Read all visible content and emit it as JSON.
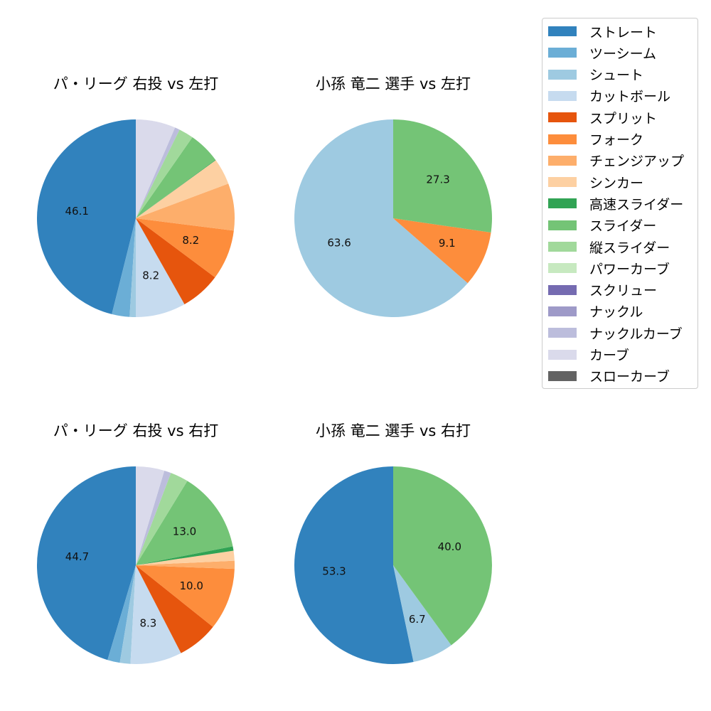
{
  "legend": [
    {
      "label": "ストレート",
      "color": "#3182bd"
    },
    {
      "label": "ツーシーム",
      "color": "#6baed6"
    },
    {
      "label": "シュート",
      "color": "#9ecae1"
    },
    {
      "label": "カットボール",
      "color": "#c6dbef"
    },
    {
      "label": "スプリット",
      "color": "#e6550d"
    },
    {
      "label": "フォーク",
      "color": "#fd8d3c"
    },
    {
      "label": "チェンジアップ",
      "color": "#fdae6b"
    },
    {
      "label": "シンカー",
      "color": "#fdd0a2"
    },
    {
      "label": "高速スライダー",
      "color": "#31a354"
    },
    {
      "label": "スライダー",
      "color": "#74c476"
    },
    {
      "label": "縦スライダー",
      "color": "#a1d99b"
    },
    {
      "label": "パワーカーブ",
      "color": "#c7e9c0"
    },
    {
      "label": "スクリュー",
      "color": "#756bb1"
    },
    {
      "label": "ナックル",
      "color": "#9e9ac8"
    },
    {
      "label": "ナックルカーブ",
      "color": "#bcbddc"
    },
    {
      "label": "カーブ",
      "color": "#dadaeb"
    },
    {
      "label": "スローカーブ",
      "color": "#636363"
    }
  ],
  "chart_data": [
    {
      "type": "pie",
      "title": "パ・リーグ 右投 vs 左打",
      "slices": [
        {
          "category": "ストレート",
          "value": 46.1,
          "label": "46.1"
        },
        {
          "category": "ツーシーム",
          "value": 2.9,
          "label": ""
        },
        {
          "category": "シュート",
          "value": 1.0,
          "label": ""
        },
        {
          "category": "カットボール",
          "value": 8.2,
          "label": "8.2"
        },
        {
          "category": "スプリット",
          "value": 6.6,
          "label": ""
        },
        {
          "category": "フォーク",
          "value": 8.2,
          "label": "8.2"
        },
        {
          "category": "チェンジアップ",
          "value": 7.7,
          "label": ""
        },
        {
          "category": "シンカー",
          "value": 4.3,
          "label": ""
        },
        {
          "category": "高速スライダー",
          "value": 0.1,
          "label": ""
        },
        {
          "category": "スライダー",
          "value": 5.2,
          "label": ""
        },
        {
          "category": "縦スライダー",
          "value": 2.4,
          "label": ""
        },
        {
          "category": "ナックルカーブ",
          "value": 0.8,
          "label": ""
        },
        {
          "category": "カーブ",
          "value": 6.5,
          "label": ""
        }
      ]
    },
    {
      "type": "pie",
      "title": "小孫 竜二 選手 vs 左打",
      "slices": [
        {
          "category": "シュート",
          "value": 63.6,
          "label": "63.6"
        },
        {
          "category": "フォーク",
          "value": 9.1,
          "label": "9.1"
        },
        {
          "category": "スライダー",
          "value": 27.3,
          "label": "27.3"
        }
      ]
    },
    {
      "type": "pie",
      "title": "パ・リーグ 右投 vs 右打",
      "slices": [
        {
          "category": "ストレート",
          "value": 44.7,
          "label": "44.7"
        },
        {
          "category": "ツーシーム",
          "value": 2.0,
          "label": ""
        },
        {
          "category": "シュート",
          "value": 1.7,
          "label": ""
        },
        {
          "category": "カットボール",
          "value": 8.3,
          "label": "8.3"
        },
        {
          "category": "スプリット",
          "value": 6.6,
          "label": ""
        },
        {
          "category": "フォーク",
          "value": 10.0,
          "label": "10.0"
        },
        {
          "category": "チェンジアップ",
          "value": 1.3,
          "label": ""
        },
        {
          "category": "シンカー",
          "value": 1.6,
          "label": ""
        },
        {
          "category": "高速スライダー",
          "value": 0.7,
          "label": ""
        },
        {
          "category": "スライダー",
          "value": 13.0,
          "label": "13.0"
        },
        {
          "category": "縦スライダー",
          "value": 2.9,
          "label": ""
        },
        {
          "category": "ナックルカーブ",
          "value": 1.1,
          "label": ""
        },
        {
          "category": "カーブ",
          "value": 4.6,
          "label": ""
        }
      ]
    },
    {
      "type": "pie",
      "title": "小孫 竜二 選手 vs 右打",
      "slices": [
        {
          "category": "ストレート",
          "value": 53.3,
          "label": "53.3"
        },
        {
          "category": "シュート",
          "value": 6.7,
          "label": "6.7"
        },
        {
          "category": "スライダー",
          "value": 40.0,
          "label": "40.0"
        }
      ]
    }
  ]
}
